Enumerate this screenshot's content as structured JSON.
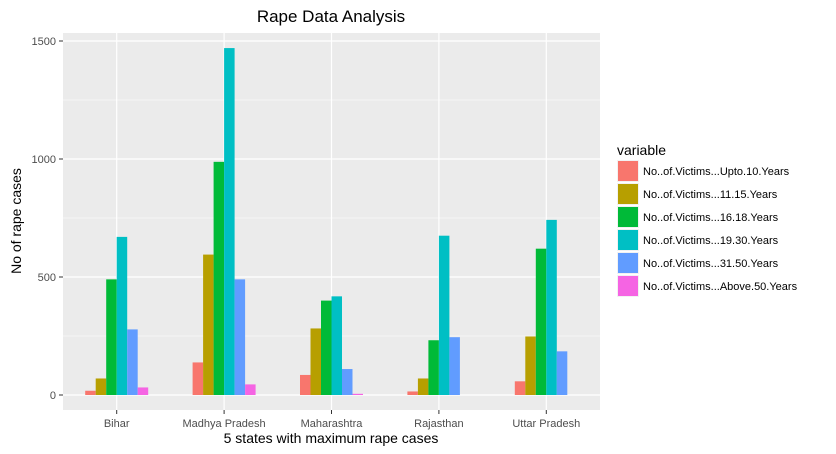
{
  "chart_data": {
    "type": "bar",
    "title": "Rape Data Analysis",
    "xlabel": "5 states with maximum rape cases",
    "ylabel": "No of rape cases",
    "categories": [
      "Bihar",
      "Madhya Pradesh",
      "Maharashtra",
      "Rajasthan",
      "Uttar Pradesh"
    ],
    "ylim": [
      0,
      1550
    ],
    "yticks": [
      0,
      500,
      1000,
      1500
    ],
    "grid": true,
    "legend": {
      "title": "variable",
      "position": "right"
    },
    "series": [
      {
        "name": "No..of.Victims...Upto.10.Years",
        "color": "#f8766d",
        "values": [
          18,
          138,
          85,
          15,
          58
        ]
      },
      {
        "name": "No..of.Victims...11.15.Years",
        "color": "#b79f00",
        "values": [
          70,
          595,
          282,
          70,
          248
        ]
      },
      {
        "name": "No..of.Victims...16.18.Years",
        "color": "#00ba38",
        "values": [
          490,
          988,
          400,
          232,
          620
        ]
      },
      {
        "name": "No..of.Victims...19.30.Years",
        "color": "#00bfc4",
        "values": [
          670,
          1470,
          418,
          675,
          742
        ]
      },
      {
        "name": "No..of.Victims...31.50.Years",
        "color": "#619cff",
        "values": [
          278,
          490,
          110,
          245,
          185
        ]
      },
      {
        "name": "No..of.Victims...Above.50.Years",
        "color": "#f564e3",
        "values": [
          32,
          45,
          5,
          0,
          0
        ]
      }
    ]
  }
}
